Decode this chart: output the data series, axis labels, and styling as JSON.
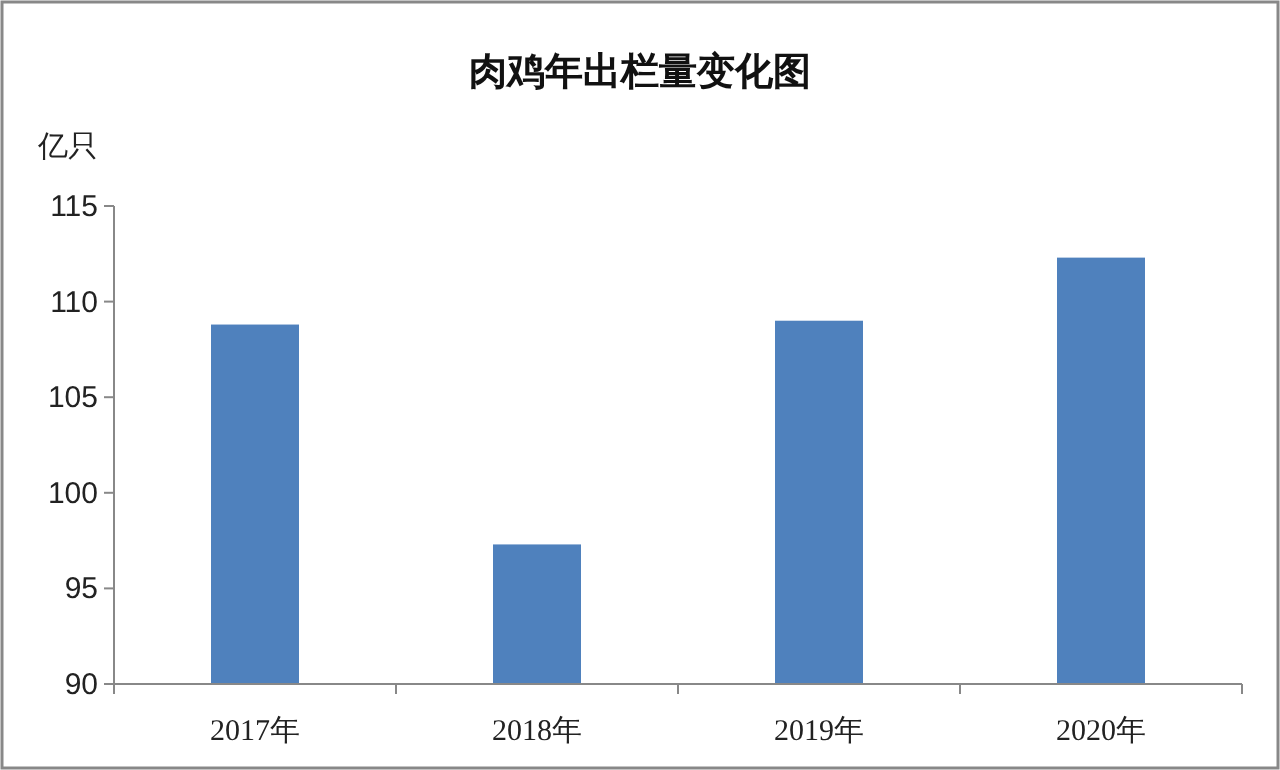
{
  "chart_data": {
    "type": "bar",
    "title": "肉鸡年出栏量变化图",
    "ylabel": "亿只",
    "categories": [
      "2017年",
      "2018年",
      "2019年",
      "2020年"
    ],
    "values": [
      108.8,
      97.3,
      109.0,
      112.3
    ],
    "color": "#4f81bd",
    "ylim": [
      90,
      115
    ],
    "yticks": [
      90,
      95,
      100,
      105,
      110,
      115
    ]
  }
}
